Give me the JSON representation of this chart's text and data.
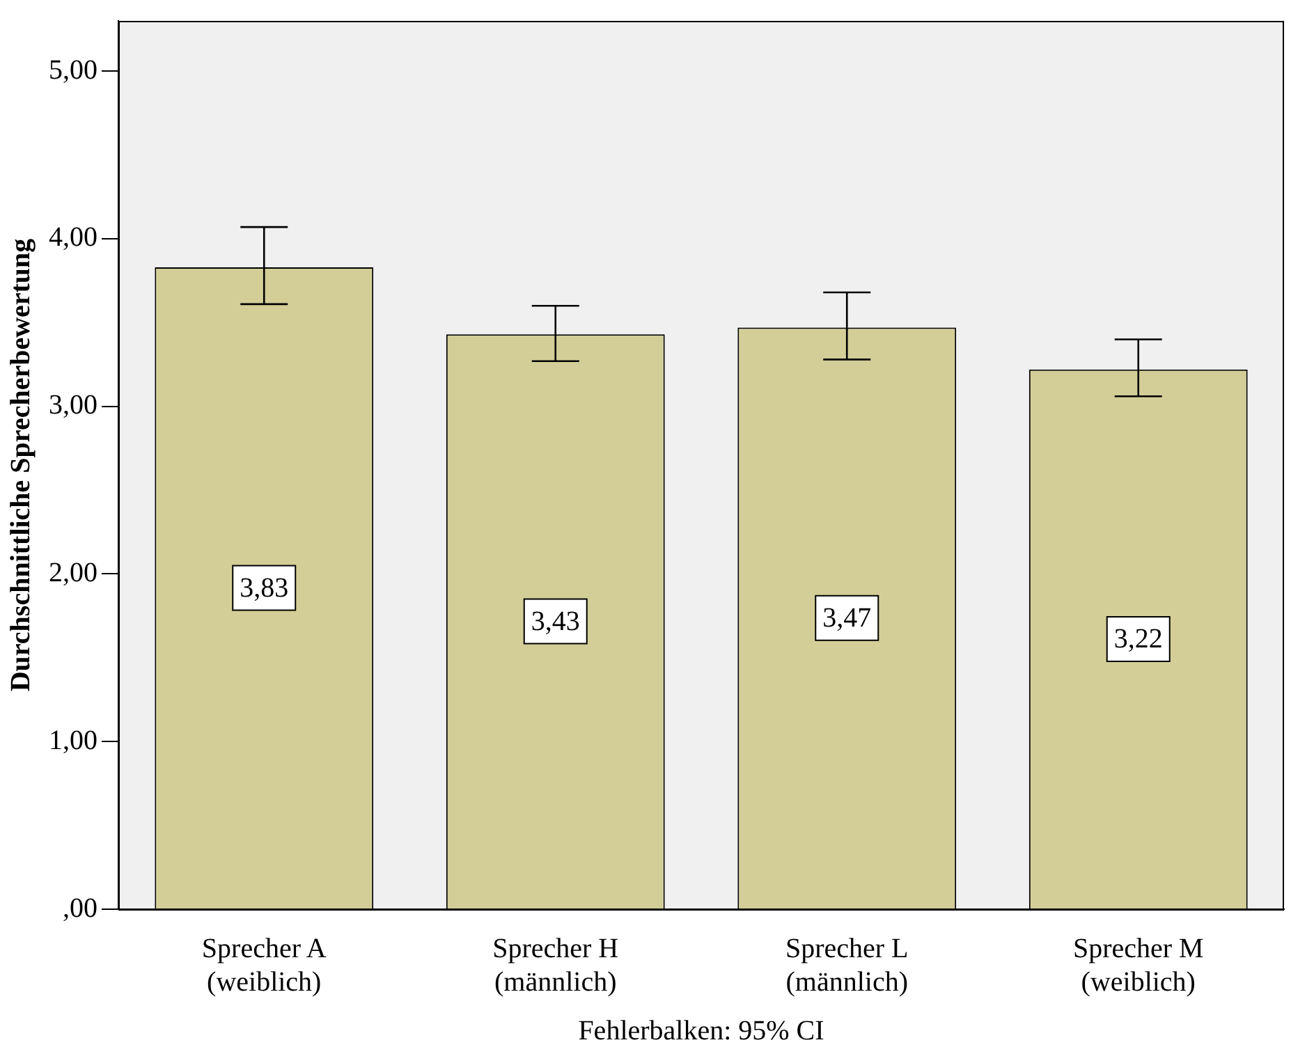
{
  "chart_data": {
    "type": "bar",
    "ylabel": "Durchschnittliche Sprecherbewertung",
    "categories": [
      "Sprecher A\n(weiblich)",
      "Sprecher H\n(männlich)",
      "Sprecher L\n(männlich)",
      "Sprecher M\n(weiblich)"
    ],
    "values": [
      3.83,
      3.43,
      3.47,
      3.22
    ],
    "value_labels": [
      "3,83",
      "3,43",
      "3,47",
      "3,22"
    ],
    "errors": [
      [
        3.61,
        4.07
      ],
      [
        3.27,
        3.6
      ],
      [
        3.28,
        3.68
      ],
      [
        3.06,
        3.4
      ]
    ],
    "color": "#d3ce97",
    "ylim": [
      0,
      5.3
    ],
    "yticks": [
      {
        "value": 0,
        "label": ",00"
      },
      {
        "value": 1,
        "label": "1,00"
      },
      {
        "value": 2,
        "label": "2,00"
      },
      {
        "value": 3,
        "label": "3,00"
      },
      {
        "value": 4,
        "label": "4,00"
      },
      {
        "value": 5,
        "label": "5,00"
      }
    ],
    "grid": false,
    "legend": false,
    "annotations": [
      "Fehlerbalken: 95% CI"
    ]
  }
}
